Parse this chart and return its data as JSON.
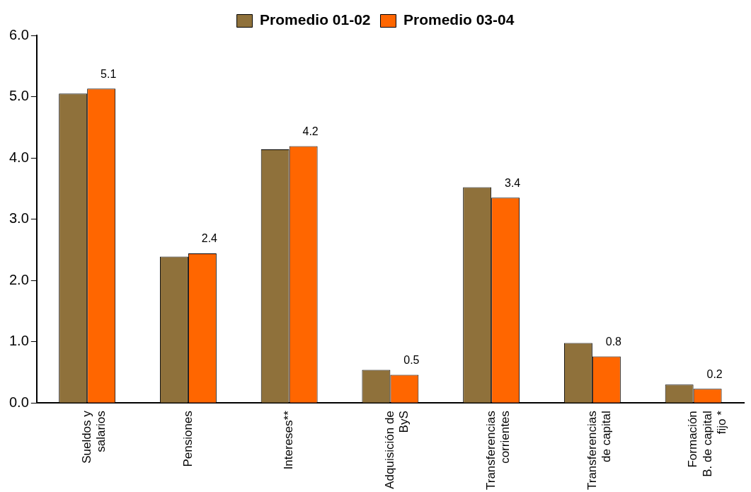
{
  "chart_data": {
    "type": "bar",
    "categories": [
      "Sueldos y\nsalarios",
      "Pensiones",
      "Intereses**",
      "Adquisición de\nByS",
      "Transferencias\ncorrientes",
      "Transferencias\nde capital",
      "Formación\nB. de capital\nfijo *"
    ],
    "series": [
      {
        "name": "Promedio 01-02",
        "color": "#8f713b",
        "values": [
          5.05,
          2.39,
          4.14,
          0.54,
          3.52,
          0.98,
          0.3
        ]
      },
      {
        "name": "Promedio 03-04",
        "color": "#ff6600",
        "values": [
          5.13,
          2.44,
          4.19,
          0.46,
          3.35,
          0.76,
          0.23
        ],
        "value_labels": [
          "5.1",
          "2.4",
          "4.2",
          "0.5",
          "3.4",
          "0.8",
          "0.2"
        ]
      }
    ],
    "ylim": [
      0,
      6
    ],
    "yticks": [
      {
        "value": 0,
        "label": "0.0"
      },
      {
        "value": 1,
        "label": "1.0"
      },
      {
        "value": 2,
        "label": "2.0"
      },
      {
        "value": 3,
        "label": "3.0"
      },
      {
        "value": 4,
        "label": "4.0"
      },
      {
        "value": 5,
        "label": "5.0"
      },
      {
        "value": 6,
        "label": "6.0"
      }
    ],
    "grid": false,
    "legend": "top"
  }
}
